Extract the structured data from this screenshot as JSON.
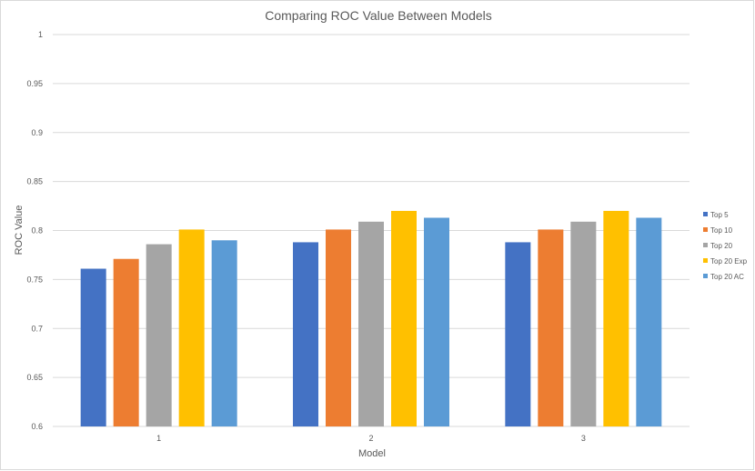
{
  "chart_data": {
    "type": "bar",
    "title": "Comparing ROC Value Between Models",
    "xlabel": "Model",
    "ylabel": "ROC Value",
    "categories": [
      "1",
      "2",
      "3"
    ],
    "ylim": [
      0.6,
      1
    ],
    "yticks": [
      "0.6",
      "0.65",
      "0.7",
      "0.75",
      "0.8",
      "0.85",
      "0.9",
      "0.95",
      "1"
    ],
    "grid": true,
    "legend_position": "right",
    "series": [
      {
        "name": "Top 5",
        "color": "#4472c4",
        "values": [
          0.761,
          0.788,
          0.788
        ]
      },
      {
        "name": "Top 10",
        "color": "#ed7d31",
        "values": [
          0.771,
          0.801,
          0.801
        ]
      },
      {
        "name": "Top 20",
        "color": "#a5a5a5",
        "values": [
          0.786,
          0.809,
          0.809
        ]
      },
      {
        "name": "Top 20 Exp",
        "color": "#ffc000",
        "values": [
          0.801,
          0.82,
          0.82
        ]
      },
      {
        "name": "Top 20 AC",
        "color": "#5b9bd5",
        "values": [
          0.79,
          0.813,
          0.813
        ]
      }
    ]
  }
}
